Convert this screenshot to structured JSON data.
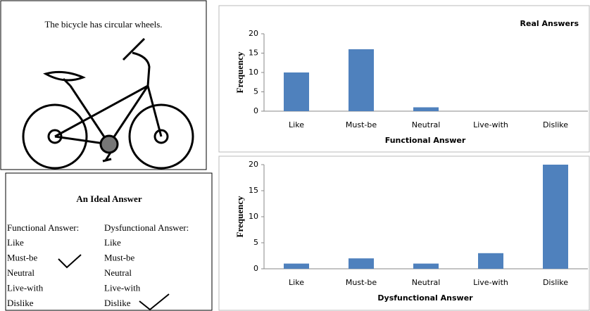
{
  "bicycle_panel": {
    "caption": "The bicycle has circular wheels."
  },
  "ideal_answer": {
    "title": "An Ideal Answer",
    "functional": {
      "header": "Functional Answer:",
      "options": [
        "Like",
        "Must-be",
        "Neutral",
        "Live-with",
        "Dislike"
      ]
    },
    "dysfunctional": {
      "header": "Dysfunctional Answer:",
      "options": [
        "Like",
        "Must-be",
        "Neutral",
        "Live-with",
        "Dislike"
      ]
    }
  },
  "chart_data": [
    {
      "type": "bar",
      "title": "Real Answers",
      "x_label": "Functional Answer",
      "y_label": "Frequency",
      "categories": [
        "Like",
        "Must-be",
        "Neutral",
        "Live-with",
        "Dislike"
      ],
      "values": [
        10,
        16,
        1,
        0,
        0
      ],
      "color": "#4f81bd",
      "ylim": [
        0,
        20
      ],
      "yticks": [
        0,
        5,
        10,
        15,
        20
      ],
      "grid": false
    },
    {
      "type": "bar",
      "x_label": "Dysfunctional Answer",
      "y_label": "Frequency",
      "categories": [
        "Like",
        "Must-be",
        "Neutral",
        "Live-with",
        "Dislike"
      ],
      "values": [
        1,
        2,
        1,
        3,
        20
      ],
      "color": "#4f81bd",
      "ylim": [
        0,
        20
      ],
      "yticks": [
        0,
        5,
        10,
        15,
        20
      ],
      "grid": false
    }
  ]
}
